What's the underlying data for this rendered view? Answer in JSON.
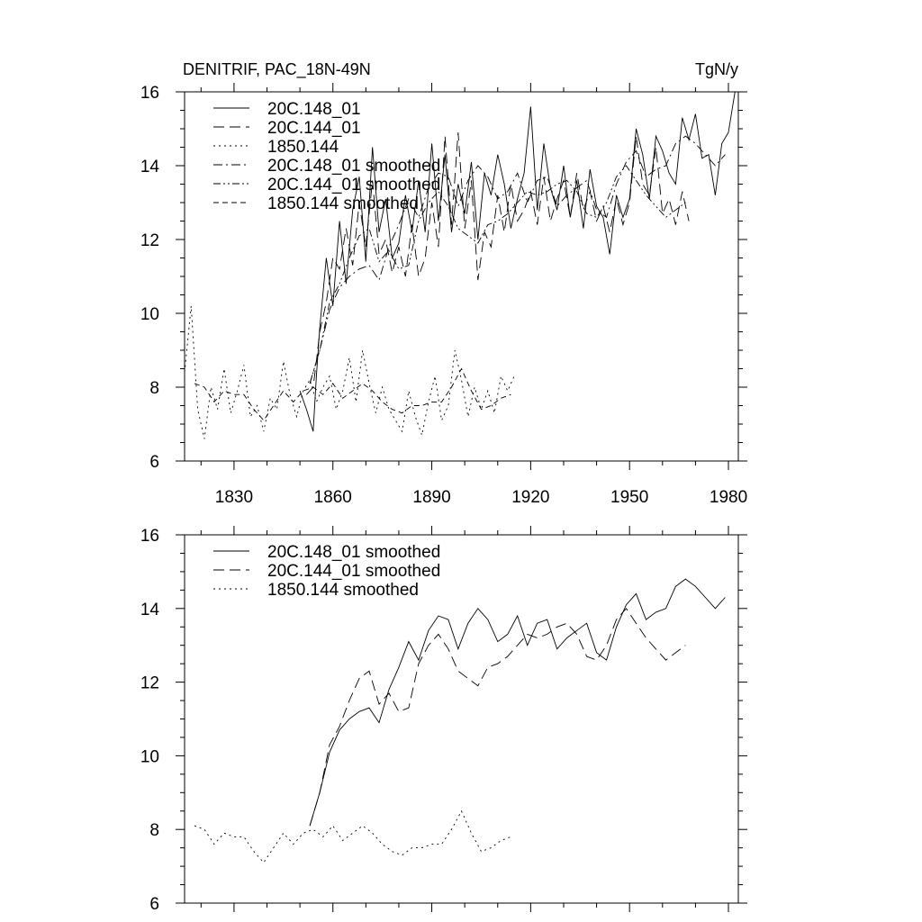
{
  "chart_data": [
    {
      "id": "top",
      "type": "line",
      "title": "DENITRIF, PAC_18N-49N",
      "units": "TgN/y",
      "xlabel": "",
      "ylabel": "",
      "xlim": [
        1815,
        1983
      ],
      "ylim": [
        6,
        16
      ],
      "xticks": [
        1830,
        1860,
        1890,
        1920,
        1950,
        1980
      ],
      "xtick_labels": [
        "1830",
        "1860",
        "1890",
        "1920",
        "1950",
        "1980"
      ],
      "yticks": [
        6,
        8,
        10,
        12,
        14,
        16
      ],
      "ytick_labels": [
        "6",
        "8",
        "10",
        "12",
        "14",
        "16"
      ],
      "legend_position": "top-left",
      "legend": [
        {
          "label": "20C.148_01",
          "style": "solid"
        },
        {
          "label": "20C.144_01",
          "style": "longdash"
        },
        {
          "label": "1850.144",
          "style": "dotted"
        },
        {
          "label": "20C.148_01 smoothed",
          "style": "dashdot"
        },
        {
          "label": "20C.144_01 smoothed",
          "style": "dashdotdot"
        },
        {
          "label": "1850.144 smoothed",
          "style": "dashed"
        }
      ],
      "series": [
        {
          "name": "20C.148_01",
          "style": "solid",
          "x": [
            1850,
            1852,
            1854,
            1855,
            1856,
            1858,
            1860,
            1862,
            1864,
            1866,
            1868,
            1870,
            1872,
            1874,
            1876,
            1878,
            1880,
            1882,
            1884,
            1886,
            1888,
            1890,
            1892,
            1894,
            1896,
            1898,
            1900,
            1902,
            1904,
            1906,
            1908,
            1910,
            1912,
            1914,
            1916,
            1918,
            1920,
            1922,
            1924,
            1926,
            1928,
            1930,
            1932,
            1934,
            1936,
            1938,
            1940,
            1942,
            1944,
            1946,
            1948,
            1950,
            1952,
            1954,
            1956,
            1958,
            1960,
            1962,
            1964,
            1966,
            1968,
            1970,
            1972,
            1974,
            1976,
            1978,
            1980,
            1982
          ],
          "y": [
            7.9,
            7.4,
            6.8,
            8.3,
            9.6,
            11.5,
            10.2,
            12.5,
            10.8,
            12.8,
            13.7,
            11.4,
            14.5,
            12.2,
            13.1,
            11.5,
            11.9,
            13.2,
            12.2,
            13.6,
            12.2,
            14.6,
            12.5,
            14.3,
            12.2,
            13.5,
            12.7,
            14.1,
            12.0,
            13.8,
            13.2,
            14.3,
            13.5,
            12.3,
            13.1,
            13.8,
            15.6,
            12.8,
            14.6,
            13.4,
            12.8,
            14.0,
            12.6,
            13.6,
            12.3,
            13.9,
            12.9,
            12.6,
            11.6,
            13.2,
            12.6,
            13.1,
            15.0,
            14.3,
            13.1,
            14.8,
            14.4,
            13.8,
            13.5,
            15.3,
            14.7,
            15.4,
            14.2,
            14.3,
            13.2,
            14.6,
            14.9,
            16.0
          ]
        },
        {
          "name": "20C.144_01",
          "style": "longdash",
          "x": [
            1852,
            1854,
            1855,
            1856,
            1858,
            1860,
            1862,
            1864,
            1866,
            1868,
            1870,
            1872,
            1874,
            1876,
            1878,
            1880,
            1882,
            1884,
            1886,
            1888,
            1890,
            1892,
            1894,
            1896,
            1898,
            1900,
            1902,
            1904,
            1906,
            1908,
            1910,
            1912,
            1914,
            1916,
            1918,
            1920,
            1922,
            1924,
            1926,
            1928,
            1930,
            1932,
            1934,
            1936,
            1938,
            1940,
            1942,
            1944,
            1946,
            1948,
            1950,
            1952,
            1954,
            1956,
            1958,
            1960,
            1962,
            1964,
            1966,
            1968
          ],
          "y": [
            7.8,
            8.0,
            8.7,
            9.5,
            10.3,
            11.5,
            11.2,
            12.3,
            11.3,
            13.0,
            11.8,
            13.6,
            11.6,
            12.0,
            11.1,
            11.8,
            11.0,
            12.4,
            11.0,
            11.5,
            13.0,
            11.8,
            14.8,
            12.4,
            14.9,
            12.3,
            13.6,
            10.9,
            12.2,
            11.8,
            13.2,
            12.2,
            13.5,
            12.5,
            12.8,
            13.3,
            12.4,
            13.7,
            12.5,
            13.1,
            13.6,
            12.6,
            13.8,
            12.8,
            13.3,
            12.5,
            12.9,
            12.2,
            13.1,
            12.4,
            13.0,
            14.8,
            13.5,
            13.2,
            14.5,
            12.7,
            13.1,
            12.4,
            13.3,
            12.5
          ]
        },
        {
          "name": "1850.144",
          "style": "dotted",
          "x": [
            1815,
            1817,
            1819,
            1821,
            1823,
            1825,
            1827,
            1829,
            1831,
            1833,
            1835,
            1837,
            1839,
            1841,
            1843,
            1845,
            1847,
            1849,
            1851,
            1853,
            1855,
            1857,
            1859,
            1861,
            1863,
            1865,
            1867,
            1869,
            1871,
            1873,
            1875,
            1877,
            1879,
            1881,
            1883,
            1885,
            1887,
            1889,
            1891,
            1893,
            1895,
            1897,
            1899,
            1901,
            1903,
            1905,
            1907,
            1909,
            1911,
            1913,
            1915
          ],
          "y": [
            8.4,
            10.2,
            7.4,
            6.6,
            8.0,
            7.4,
            8.5,
            7.3,
            7.9,
            8.6,
            7.2,
            7.5,
            6.8,
            7.7,
            7.4,
            8.7,
            7.8,
            7.2,
            7.9,
            8.2,
            7.6,
            8.0,
            8.3,
            7.4,
            7.9,
            8.8,
            7.6,
            9.0,
            8.1,
            7.3,
            8.0,
            7.4,
            7.1,
            6.8,
            7.9,
            7.2,
            6.7,
            7.6,
            8.3,
            7.1,
            7.5,
            9.0,
            8.2,
            7.2,
            8.0,
            7.4,
            7.9,
            7.3,
            8.3,
            7.9,
            8.3
          ]
        },
        {
          "name": "20C.148_01 smoothed",
          "style": "dashdot",
          "x": [
            1853,
            1856,
            1859,
            1862,
            1865,
            1868,
            1871,
            1874,
            1877,
            1880,
            1883,
            1886,
            1889,
            1892,
            1895,
            1898,
            1901,
            1904,
            1907,
            1910,
            1913,
            1916,
            1919,
            1922,
            1925,
            1928,
            1931,
            1934,
            1937,
            1940,
            1943,
            1946,
            1949,
            1952,
            1955,
            1958,
            1961,
            1964,
            1967,
            1970,
            1973,
            1976,
            1979
          ],
          "y": [
            8.1,
            9.0,
            10.1,
            10.7,
            11.0,
            11.2,
            11.3,
            10.9,
            11.8,
            12.4,
            13.1,
            12.6,
            13.4,
            13.8,
            13.7,
            12.9,
            13.6,
            14.0,
            13.7,
            13.1,
            13.3,
            13.8,
            13.0,
            13.6,
            13.7,
            12.9,
            13.2,
            13.4,
            13.6,
            12.8,
            12.6,
            13.5,
            14.1,
            14.4,
            13.7,
            13.9,
            14.0,
            14.6,
            14.8,
            14.6,
            14.3,
            14.0,
            14.3
          ]
        },
        {
          "name": "20C.144_01 smoothed",
          "style": "dashdotdot",
          "x": [
            1853,
            1856,
            1859,
            1862,
            1865,
            1868,
            1871,
            1874,
            1877,
            1880,
            1883,
            1886,
            1889,
            1892,
            1895,
            1898,
            1901,
            1904,
            1907,
            1910,
            1913,
            1916,
            1919,
            1922,
            1925,
            1928,
            1931,
            1934,
            1937,
            1940,
            1943,
            1946,
            1949,
            1952,
            1955,
            1958,
            1961,
            1964,
            1967
          ],
          "y": [
            8.1,
            9.0,
            10.3,
            10.8,
            11.5,
            12.1,
            12.3,
            11.4,
            11.7,
            11.2,
            11.3,
            12.5,
            13.0,
            13.3,
            12.9,
            12.3,
            12.1,
            11.9,
            12.4,
            12.5,
            12.7,
            13.0,
            13.3,
            13.2,
            13.3,
            13.5,
            13.6,
            13.3,
            12.7,
            12.6,
            13.0,
            13.7,
            14.0,
            13.6,
            13.2,
            12.9,
            12.6,
            12.8,
            13.0
          ]
        },
        {
          "name": "1850.144 smoothed",
          "style": "dashed",
          "x": [
            1818,
            1821,
            1824,
            1827,
            1830,
            1833,
            1836,
            1839,
            1842,
            1845,
            1848,
            1851,
            1854,
            1857,
            1860,
            1863,
            1866,
            1869,
            1872,
            1875,
            1878,
            1881,
            1884,
            1887,
            1890,
            1893,
            1896,
            1899,
            1902,
            1905,
            1908,
            1911,
            1914
          ],
          "y": [
            8.1,
            8.0,
            7.6,
            7.9,
            7.8,
            7.8,
            7.4,
            7.1,
            7.5,
            7.9,
            7.6,
            7.9,
            8.0,
            7.8,
            8.1,
            7.7,
            7.9,
            8.1,
            7.9,
            7.6,
            7.4,
            7.3,
            7.5,
            7.5,
            7.6,
            7.6,
            8.0,
            8.5,
            7.9,
            7.4,
            7.5,
            7.7,
            7.8
          ]
        }
      ]
    },
    {
      "id": "bottom",
      "type": "line",
      "title": "",
      "units": "",
      "xlabel": "",
      "ylabel": "",
      "xlim": [
        1815,
        1983
      ],
      "ylim": [
        6,
        16
      ],
      "xticks": [
        1830,
        1860,
        1890,
        1920,
        1950,
        1980
      ],
      "xtick_labels": [],
      "yticks": [
        6,
        8,
        10,
        12,
        14,
        16
      ],
      "ytick_labels": [
        "6",
        "8",
        "10",
        "12",
        "14",
        "16"
      ],
      "legend_position": "top-left",
      "legend": [
        {
          "label": "20C.148_01 smoothed",
          "style": "solid"
        },
        {
          "label": "20C.144_01 smoothed",
          "style": "longdash"
        },
        {
          "label": "1850.144 smoothed",
          "style": "dotted"
        }
      ],
      "series": [
        {
          "name": "20C.148_01 smoothed",
          "style": "solid",
          "x": [
            1853,
            1856,
            1859,
            1862,
            1865,
            1868,
            1871,
            1874,
            1877,
            1880,
            1883,
            1886,
            1889,
            1892,
            1895,
            1898,
            1901,
            1904,
            1907,
            1910,
            1913,
            1916,
            1919,
            1922,
            1925,
            1928,
            1931,
            1934,
            1937,
            1940,
            1943,
            1946,
            1949,
            1952,
            1955,
            1958,
            1961,
            1964,
            1967,
            1970,
            1973,
            1976,
            1979
          ],
          "y": [
            8.1,
            9.0,
            10.1,
            10.7,
            11.0,
            11.2,
            11.3,
            10.9,
            11.8,
            12.4,
            13.1,
            12.6,
            13.4,
            13.8,
            13.7,
            12.9,
            13.6,
            14.0,
            13.7,
            13.1,
            13.3,
            13.8,
            13.0,
            13.6,
            13.7,
            12.9,
            13.2,
            13.4,
            13.6,
            12.8,
            12.6,
            13.5,
            14.1,
            14.4,
            13.7,
            13.9,
            14.0,
            14.6,
            14.8,
            14.6,
            14.3,
            14.0,
            14.3
          ]
        },
        {
          "name": "20C.144_01 smoothed",
          "style": "longdash",
          "x": [
            1853,
            1856,
            1859,
            1862,
            1865,
            1868,
            1871,
            1874,
            1877,
            1880,
            1883,
            1886,
            1889,
            1892,
            1895,
            1898,
            1901,
            1904,
            1907,
            1910,
            1913,
            1916,
            1919,
            1922,
            1925,
            1928,
            1931,
            1934,
            1937,
            1940,
            1943,
            1946,
            1949,
            1952,
            1955,
            1958,
            1961,
            1964,
            1967
          ],
          "y": [
            8.1,
            9.0,
            10.3,
            10.8,
            11.5,
            12.1,
            12.3,
            11.4,
            11.7,
            11.2,
            11.3,
            12.5,
            13.0,
            13.3,
            12.9,
            12.3,
            12.1,
            11.9,
            12.4,
            12.5,
            12.7,
            13.0,
            13.3,
            13.2,
            13.3,
            13.5,
            13.6,
            13.3,
            12.7,
            12.6,
            13.0,
            13.7,
            14.0,
            13.6,
            13.2,
            12.9,
            12.6,
            12.8,
            13.0
          ]
        },
        {
          "name": "1850.144 smoothed",
          "style": "dotted",
          "x": [
            1818,
            1821,
            1824,
            1827,
            1830,
            1833,
            1836,
            1839,
            1842,
            1845,
            1848,
            1851,
            1854,
            1857,
            1860,
            1863,
            1866,
            1869,
            1872,
            1875,
            1878,
            1881,
            1884,
            1887,
            1890,
            1893,
            1896,
            1899,
            1902,
            1905,
            1908,
            1911,
            1914
          ],
          "y": [
            8.1,
            8.0,
            7.6,
            7.9,
            7.8,
            7.8,
            7.4,
            7.1,
            7.5,
            7.9,
            7.6,
            7.9,
            8.0,
            7.8,
            8.1,
            7.7,
            7.9,
            8.1,
            7.9,
            7.6,
            7.4,
            7.3,
            7.5,
            7.5,
            7.6,
            7.6,
            8.0,
            8.5,
            7.9,
            7.4,
            7.5,
            7.7,
            7.8
          ]
        }
      ]
    }
  ]
}
